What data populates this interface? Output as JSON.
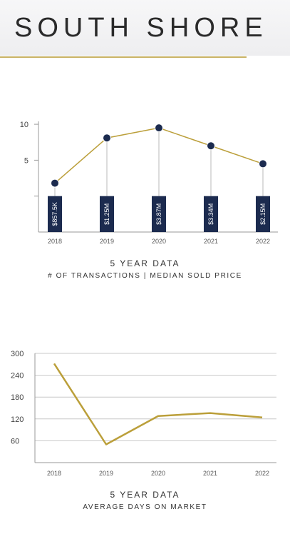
{
  "page": {
    "title": "SOUTH SHORE"
  },
  "colors": {
    "gold": "#bb9f3a",
    "navy": "#1c2b4f",
    "axis": "#9a9a9a",
    "grid": "#c8c8c8"
  },
  "chart_data": [
    {
      "type": "line",
      "title": "5 YEAR DATA",
      "subtitle": "# OF TRANSACTIONS | MEDIAN SOLD PRICE",
      "categories": [
        "2018",
        "2019",
        "2020",
        "2021",
        "2022"
      ],
      "series": [
        {
          "values": [
            1.8,
            8.1,
            9.5,
            7.0,
            4.5
          ]
        }
      ],
      "bar_labels": [
        "$857.5K",
        "$1.25M",
        "$3.87M",
        "$3.34M",
        "$2.15M"
      ],
      "yticks": [
        {
          "value": 10,
          "label": "10"
        },
        {
          "value": 5,
          "label": "5"
        },
        {
          "value": 0,
          "label": ""
        }
      ],
      "ylim": [
        -5,
        11.4
      ],
      "grid": false
    },
    {
      "type": "line",
      "title": "5 YEAR DATA",
      "subtitle": "AVERAGE DAYS ON MARKET",
      "categories": [
        "2018",
        "2019",
        "2020",
        "2021",
        "2022"
      ],
      "series": [
        {
          "values": [
            272,
            50,
            128,
            136,
            124
          ]
        }
      ],
      "yticks": [
        {
          "value": 300,
          "label": "300"
        },
        {
          "value": 240,
          "label": "240"
        },
        {
          "value": 180,
          "label": "180"
        },
        {
          "value": 120,
          "label": "120"
        },
        {
          "value": 60,
          "label": "60"
        }
      ],
      "ylim": [
        0,
        300
      ],
      "grid": true
    }
  ]
}
